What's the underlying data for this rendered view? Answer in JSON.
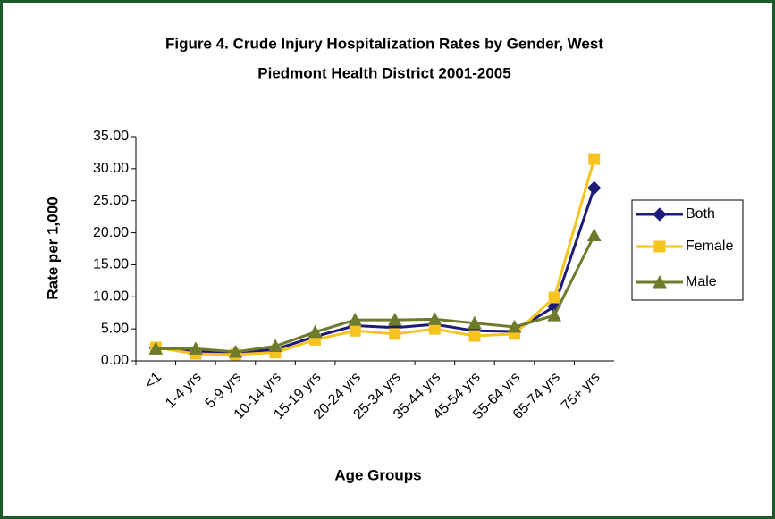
{
  "chart_data": {
    "type": "line",
    "title": [
      "Figure 4. Crude Injury Hospitalization Rates by Gender, West",
      "Piedmont Health District 2001-2005"
    ],
    "x_label": "Age Groups",
    "y_label": "Rate per 1,000",
    "categories": [
      "<1",
      "1-4 yrs",
      "5-9 yrs",
      "10-14 yrs",
      "15-19 yrs",
      "20-24 yrs",
      "25-34 yrs",
      "35-44 yrs",
      "45-54 yrs",
      "55-64 yrs",
      "65-74 yrs",
      "75+ yrs"
    ],
    "series": [
      {
        "name": "Both",
        "color": "#1c1c78",
        "marker": "diamond",
        "values": [
          2.0,
          1.5,
          1.2,
          1.8,
          3.8,
          5.5,
          5.2,
          5.7,
          4.7,
          4.6,
          8.5,
          27.0
        ]
      },
      {
        "name": "Female",
        "color": "#f7c31e",
        "marker": "square",
        "values": [
          2.1,
          1.1,
          1.0,
          1.3,
          3.3,
          4.7,
          4.2,
          5.0,
          3.9,
          4.2,
          9.9,
          31.5
        ]
      },
      {
        "name": "Male",
        "color": "#6e7a2c",
        "marker": "triangle",
        "values": [
          1.9,
          1.9,
          1.4,
          2.3,
          4.5,
          6.4,
          6.4,
          6.5,
          5.9,
          5.3,
          7.1,
          19.6
        ]
      }
    ],
    "ylim": [
      0,
      35
    ],
    "yticks": [
      {
        "value": 0,
        "label": "0.00"
      },
      {
        "value": 5,
        "label": "5.00"
      },
      {
        "value": 10,
        "label": "10.00"
      },
      {
        "value": 15,
        "label": "15.00"
      },
      {
        "value": 20,
        "label": "20.00"
      },
      {
        "value": 25,
        "label": "25.00"
      },
      {
        "value": 30,
        "label": "30.00"
      },
      {
        "value": 35,
        "label": "35.00"
      }
    ],
    "grid": false,
    "legend": "right"
  }
}
